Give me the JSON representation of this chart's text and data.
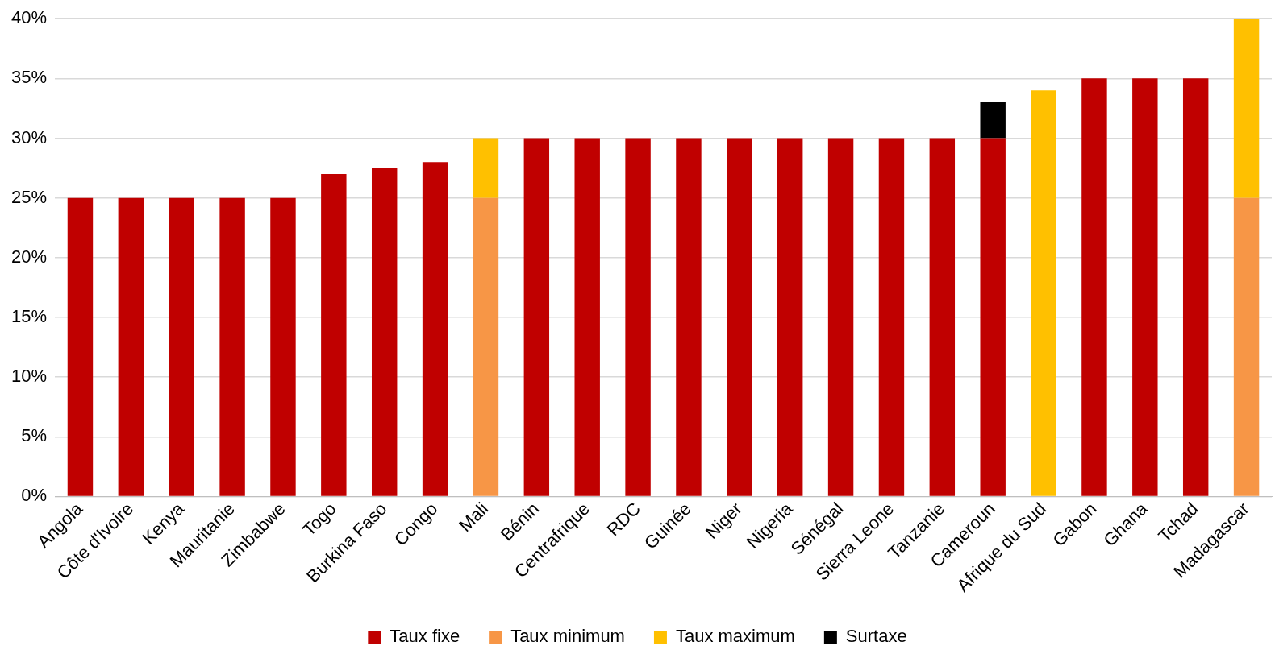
{
  "chart_data": {
    "type": "bar",
    "stacked": true,
    "categories": [
      "Angola",
      "Côte d'Ivoire",
      "Kenya",
      "Mauritanie",
      "Zimbabwe",
      "Togo",
      "Burkina Faso",
      "Congo",
      "Mali",
      "Bénin",
      "Centrafrique",
      "RDC",
      "Guinée",
      "Niger",
      "Nigeria",
      "Sénégal",
      "Sierra Leone",
      "Tanzanie",
      "Cameroun",
      "Afrique du Sud",
      "Gabon",
      "Ghana",
      "Tchad",
      "Madagascar"
    ],
    "series": [
      {
        "name": "Taux fixe",
        "color": "#c00000",
        "values": [
          25,
          25,
          25,
          25,
          25,
          27,
          27.5,
          28,
          null,
          30,
          30,
          30,
          30,
          30,
          30,
          30,
          30,
          30,
          30,
          null,
          35,
          35,
          35,
          null
        ]
      },
      {
        "name": "Taux minimum",
        "color": "#f79646",
        "values": [
          null,
          null,
          null,
          null,
          null,
          null,
          null,
          null,
          25,
          null,
          null,
          null,
          null,
          null,
          null,
          null,
          null,
          null,
          null,
          null,
          null,
          null,
          null,
          25
        ]
      },
      {
        "name": "Taux maximum",
        "color": "#ffc000",
        "values": [
          null,
          null,
          null,
          null,
          null,
          null,
          null,
          null,
          5,
          null,
          null,
          null,
          null,
          null,
          null,
          null,
          null,
          null,
          null,
          34,
          null,
          null,
          null,
          15
        ]
      },
      {
        "name": "Surtaxe",
        "color": "#000000",
        "values": [
          null,
          null,
          null,
          null,
          null,
          null,
          null,
          null,
          null,
          null,
          null,
          null,
          null,
          null,
          null,
          null,
          null,
          null,
          3,
          null,
          null,
          null,
          null,
          null
        ]
      }
    ],
    "ylim": [
      0,
      40
    ],
    "yticks": [
      {
        "value": 0,
        "label": "0%"
      },
      {
        "value": 5,
        "label": "5%"
      },
      {
        "value": 10,
        "label": "10%"
      },
      {
        "value": 15,
        "label": "15%"
      },
      {
        "value": 20,
        "label": "20%"
      },
      {
        "value": 25,
        "label": "25%"
      },
      {
        "value": 30,
        "label": "30%"
      },
      {
        "value": 35,
        "label": "35%"
      },
      {
        "value": 40,
        "label": "40%"
      }
    ],
    "grid": "y",
    "legend": "bottom"
  }
}
